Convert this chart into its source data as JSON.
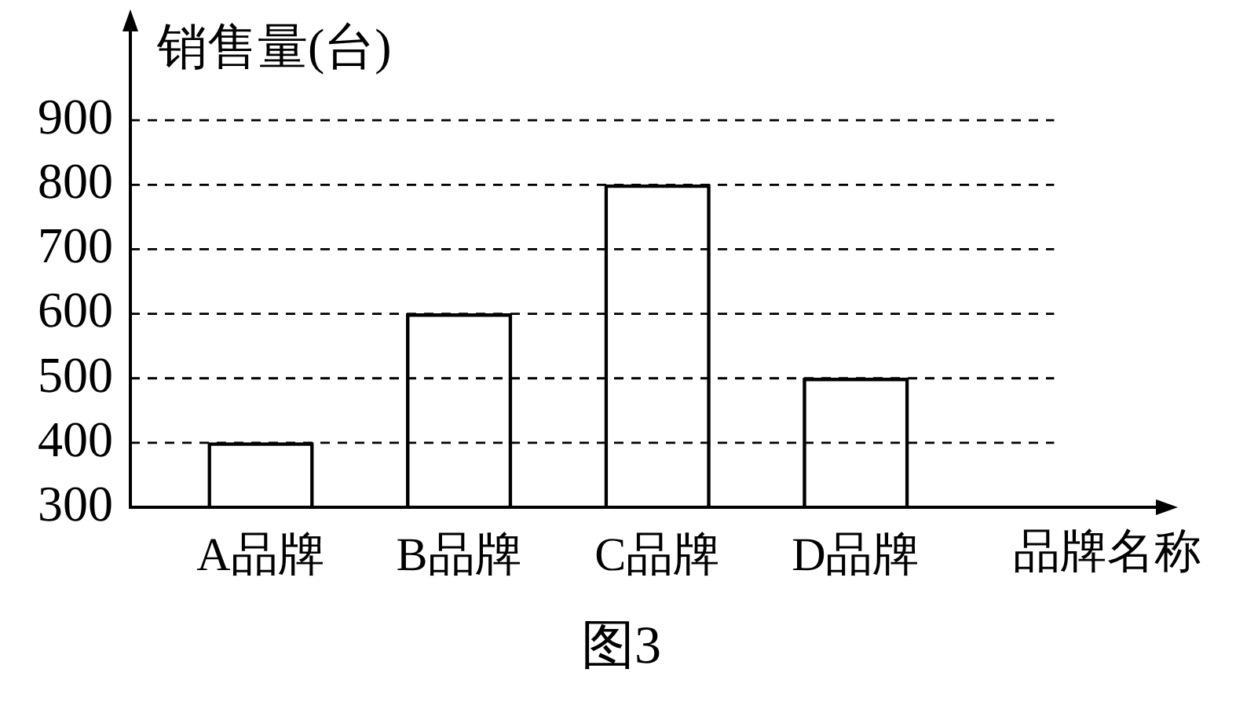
{
  "chart_data": {
    "type": "bar",
    "categories": [
      "A品牌",
      "B品牌",
      "C品牌",
      "D品牌"
    ],
    "values": [
      400,
      600,
      800,
      500
    ],
    "color": "#000000",
    "ylim": [
      300,
      1050
    ],
    "yticks": [
      300,
      400,
      500,
      600,
      700,
      800,
      900
    ],
    "xlabel": "品牌名称",
    "ylabel": "销售量(台)",
    "grid": "y",
    "annotations": [
      "图3"
    ]
  }
}
